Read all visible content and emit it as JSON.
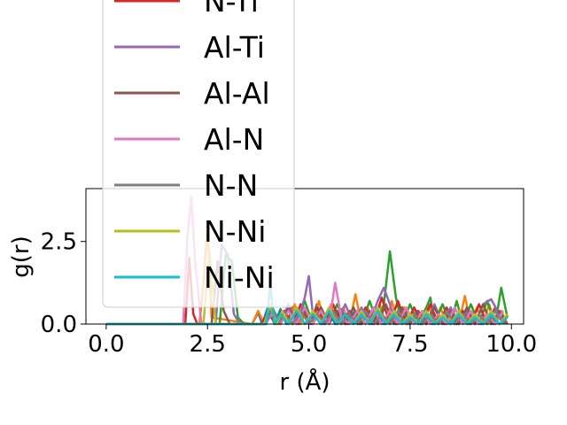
{
  "chart_data": {
    "type": "line",
    "xlabel": "r (Å)",
    "ylabel": "g(r)",
    "xlim": [
      -0.5,
      10.3
    ],
    "ylim": [
      0,
      4.1
    ],
    "x_ticks": [
      "0.0",
      "2.5",
      "5.0",
      "7.5",
      "10.0"
    ],
    "y_ticks": [
      "0.0",
      "2.5"
    ],
    "grid": false,
    "legend_placement": "upper-left (extends above plot)",
    "series": [
      {
        "name": "",
        "color": "#1f77b4",
        "x": [
          0,
          3.6,
          3.75,
          3.85,
          4.0,
          4.15,
          4.3,
          4.45,
          4.6,
          4.75,
          4.9,
          5.05,
          5.2,
          5.35,
          5.5,
          5.65,
          5.8,
          5.95,
          6.1,
          6.25,
          6.4,
          6.55,
          6.7,
          6.85,
          7.0,
          7.15,
          7.3,
          7.45,
          7.6,
          7.75,
          7.9,
          8.05,
          8.2,
          8.35,
          8.5,
          8.65,
          8.8,
          8.95,
          9.1,
          9.25,
          9.4,
          9.55,
          9.7,
          9.85
        ],
        "y": [
          0,
          0,
          0.35,
          0.0,
          0.55,
          0.0,
          0.45,
          0.0,
          0.5,
          0.0,
          0.45,
          0.0,
          0.6,
          0.0,
          0.4,
          0.0,
          0.45,
          0.0,
          0.35,
          0.0,
          0.4,
          0.0,
          0.3,
          0.0,
          0.35,
          0.0,
          0.3,
          0.0,
          0.3,
          0.0,
          0.35,
          0.0,
          0.3,
          0.0,
          0.25,
          0.0,
          0.3,
          0.0,
          0.25,
          0.0,
          0.3,
          0.0,
          0.25,
          0.0
        ]
      },
      {
        "name": "",
        "color": "#ff7f0e",
        "x": [
          0,
          2.3,
          2.4,
          2.5,
          2.6,
          3.6,
          3.75,
          3.9,
          4.05,
          4.2,
          4.35,
          4.5,
          4.65,
          4.8,
          4.95,
          5.1,
          5.25,
          5.4,
          5.55,
          5.7,
          5.85,
          6.0,
          6.15,
          6.3,
          6.45,
          6.6,
          6.75,
          6.9,
          7.05,
          7.2,
          7.35,
          7.5,
          7.65,
          7.8,
          7.95,
          8.1,
          8.25,
          8.4,
          8.55,
          8.7,
          8.85,
          9.0,
          9.15,
          9.3,
          9.45,
          9.6,
          9.75,
          9.9
        ],
        "y": [
          0,
          0,
          1.2,
          3.0,
          0.2,
          0,
          0.4,
          0.0,
          0.5,
          0.0,
          0.4,
          0.0,
          0.6,
          0.0,
          0.5,
          0.0,
          0.7,
          0.0,
          0.6,
          0.0,
          0.5,
          0.0,
          0.9,
          0.0,
          0.5,
          0.0,
          0.6,
          0.0,
          0.7,
          0.0,
          0.5,
          0.0,
          0.4,
          0.0,
          0.6,
          0.0,
          0.5,
          0.0,
          0.4,
          0.0,
          0.85,
          0.0,
          0.5,
          0.0,
          0.6,
          0.0,
          0.4,
          0.0
        ]
      },
      {
        "name": "",
        "color": "#2ca02c",
        "x": [
          0,
          2.8,
          2.95,
          3.1,
          3.25,
          3.4,
          3.9,
          4.1,
          4.3,
          4.5,
          4.7,
          4.9,
          5.1,
          5.3,
          5.5,
          5.7,
          5.9,
          6.1,
          6.3,
          6.5,
          6.7,
          6.85,
          7.0,
          7.15,
          7.3,
          7.5,
          7.7,
          7.9,
          8.0,
          8.1,
          8.3,
          8.5,
          8.65,
          8.8,
          9.0,
          9.2,
          9.4,
          9.6,
          9.75,
          9.9
        ],
        "y": [
          0,
          0,
          2.1,
          1.9,
          0.2,
          0.0,
          0,
          0.5,
          0.0,
          0.6,
          0.0,
          0.7,
          0.0,
          0.5,
          0.0,
          0.6,
          0.0,
          0.5,
          0.0,
          0.7,
          0.0,
          0.6,
          2.2,
          0.8,
          0.0,
          0.6,
          0.0,
          0.5,
          0.8,
          0.0,
          0.6,
          0.0,
          0.7,
          0.0,
          0.6,
          0.0,
          0.7,
          0.0,
          1.1,
          0.2
        ]
      },
      {
        "name": "N-Ti",
        "color": "#d62728",
        "x": [
          0,
          1.95,
          2.05,
          2.15,
          2.25,
          3.8,
          4.0,
          4.2,
          4.4,
          4.6,
          4.8,
          5.0,
          5.2,
          5.4,
          5.6,
          5.8,
          6.0,
          6.2,
          6.4,
          6.6,
          6.8,
          7.0,
          7.2,
          7.4,
          7.6,
          7.8,
          8.0,
          8.2,
          8.4,
          8.6,
          8.8,
          9.0,
          9.2,
          9.4,
          9.6,
          9.8
        ],
        "y": [
          0,
          0,
          2.0,
          0.3,
          0.0,
          0,
          0.3,
          0.0,
          0.4,
          0.0,
          0.6,
          0.0,
          0.5,
          0.0,
          0.6,
          0.0,
          0.4,
          0.0,
          0.5,
          0.0,
          0.8,
          0.0,
          0.7,
          0.0,
          0.5,
          0.0,
          0.6,
          0.0,
          0.5,
          0.0,
          0.4,
          0.0,
          0.6,
          0.0,
          0.5,
          0.0
        ]
      },
      {
        "name": "Al-Ti",
        "color": "#9467bd",
        "x": [
          0,
          2.7,
          2.85,
          3.0,
          3.15,
          3.3,
          3.9,
          4.1,
          4.3,
          4.5,
          4.7,
          4.9,
          5.0,
          5.1,
          5.3,
          5.5,
          5.7,
          5.9,
          6.1,
          6.3,
          6.5,
          6.7,
          6.85,
          7.0,
          7.15,
          7.3,
          7.5,
          7.7,
          7.9,
          8.1,
          8.3,
          8.5,
          8.7,
          8.9,
          9.1,
          9.3,
          9.5,
          9.7,
          9.9
        ],
        "y": [
          0,
          0,
          2.4,
          2.1,
          0.3,
          0.0,
          0,
          0.4,
          0.0,
          0.6,
          0.0,
          0.8,
          1.45,
          0.3,
          0.0,
          0.5,
          0.0,
          0.6,
          0.0,
          0.5,
          0.0,
          0.7,
          1.1,
          0.6,
          0.0,
          0.5,
          0.0,
          0.4,
          0.0,
          0.6,
          0.0,
          0.5,
          0.0,
          0.4,
          0.0,
          0.6,
          0.75,
          0.3,
          0.0
        ]
      },
      {
        "name": "Al-Al",
        "color": "#8c564b",
        "x": [
          0,
          2.6,
          2.75,
          2.9,
          3.05,
          3.9,
          4.1,
          4.3,
          4.5,
          4.7,
          4.9,
          5.1,
          5.3,
          5.5,
          5.7,
          5.9,
          6.1,
          6.3,
          6.5,
          6.7,
          6.9,
          7.1,
          7.3,
          7.5,
          7.7,
          7.9,
          8.1,
          8.3,
          8.5,
          8.7,
          8.9,
          9.1,
          9.3,
          9.5,
          9.7,
          9.9
        ],
        "y": [
          0,
          0,
          1.9,
          0.4,
          0.0,
          0,
          0.3,
          0.0,
          0.5,
          0.0,
          0.4,
          0.0,
          0.5,
          0.0,
          0.4,
          0.0,
          0.5,
          0.0,
          0.4,
          0.0,
          0.6,
          0.0,
          0.5,
          0.0,
          0.4,
          0.0,
          0.5,
          0.0,
          0.4,
          0.0,
          0.5,
          0.0,
          0.6,
          0.0,
          0.4,
          0.0
        ]
      },
      {
        "name": "Al-N",
        "color": "#e377c2",
        "x": [
          0,
          1.9,
          2.0,
          2.1,
          2.2,
          2.35,
          3.9,
          4.1,
          4.3,
          4.5,
          4.7,
          4.9,
          5.1,
          5.3,
          5.5,
          5.65,
          5.8,
          6.0,
          6.2,
          6.4,
          6.6,
          6.8,
          7.0,
          7.2,
          7.4,
          7.6,
          7.8,
          8.0,
          8.2,
          8.4,
          8.6,
          8.8,
          9.0,
          9.2,
          9.4,
          9.6,
          9.8
        ],
        "y": [
          0,
          0,
          2.6,
          3.85,
          1.8,
          0.0,
          0,
          0.3,
          0.0,
          0.4,
          0.0,
          0.5,
          0.0,
          0.4,
          0.0,
          1.25,
          0.2,
          0.0,
          0.4,
          0.0,
          0.5,
          0.0,
          0.4,
          0.0,
          0.5,
          0.0,
          0.4,
          0.0,
          0.3,
          0.0,
          0.5,
          0.0,
          0.4,
          0.0,
          0.3,
          0.0,
          0.4
        ]
      },
      {
        "name": "N-N",
        "color": "#7f7f7f",
        "x": [
          0,
          3.95,
          4.1,
          4.25,
          4.4,
          4.6,
          4.8,
          5.0,
          5.2,
          5.4,
          5.6,
          5.8,
          6.0,
          6.2,
          6.4,
          6.6,
          6.8,
          7.0,
          7.2,
          7.4,
          7.6,
          7.8,
          8.0,
          8.2,
          8.4,
          8.6,
          8.8,
          9.0,
          9.2,
          9.4,
          9.6,
          9.8
        ],
        "y": [
          0,
          0,
          0.5,
          0.0,
          0.3,
          0.0,
          0.4,
          0.0,
          0.3,
          0.0,
          0.4,
          0.0,
          0.3,
          0.0,
          0.4,
          0.0,
          0.3,
          0.0,
          0.4,
          0.0,
          0.3,
          0.0,
          0.3,
          0.0,
          0.4,
          0.0,
          0.3,
          0.0,
          0.3,
          0.0,
          0.4,
          0.0
        ]
      },
      {
        "name": "N-Ni",
        "color": "#bcbd22",
        "x": [
          0,
          2.4,
          2.55,
          2.7,
          3.9,
          4.05,
          4.2,
          4.35,
          4.5,
          4.7,
          4.9,
          5.1,
          5.3,
          5.5,
          5.7,
          5.9,
          6.1,
          6.3,
          6.5,
          6.7,
          6.9,
          7.1,
          7.3,
          7.5,
          7.7,
          7.9,
          8.1,
          8.3,
          8.5,
          8.7,
          8.9,
          9.1,
          9.3,
          9.5,
          9.7,
          9.9
        ],
        "y": [
          0,
          0,
          2.2,
          0.0,
          0,
          0.6,
          0.0,
          0.4,
          0.0,
          0.5,
          0.0,
          0.4,
          0.0,
          0.5,
          0.0,
          0.3,
          0.0,
          0.4,
          0.0,
          0.5,
          0.0,
          0.4,
          0.0,
          0.3,
          0.0,
          0.4,
          0.0,
          0.3,
          0.0,
          0.4,
          0.0,
          0.3,
          0.0,
          0.4,
          0.0,
          0.3
        ]
      },
      {
        "name": "Ni-Ni",
        "color": "#17becf",
        "x": [
          0,
          3.95,
          4.05,
          4.15,
          4.3,
          4.5,
          4.7,
          4.9,
          5.1,
          5.3,
          5.5,
          5.7,
          5.9,
          6.1,
          6.3,
          6.5,
          6.7,
          6.9,
          7.1,
          7.3,
          7.5,
          7.7,
          7.9,
          8.1,
          8.3,
          8.5,
          8.7,
          8.9,
          9.1,
          9.3,
          9.5,
          9.7,
          9.9
        ],
        "y": [
          0,
          0,
          1.2,
          0.0,
          0.3,
          0.0,
          0.4,
          0.0,
          0.3,
          0.0,
          0.4,
          0.0,
          0.3,
          0.0,
          0.3,
          0.0,
          0.4,
          0.0,
          0.3,
          0.0,
          0.2,
          0.0,
          0.3,
          0.0,
          0.2,
          0.0,
          0.3,
          0.0,
          0.2,
          0.0,
          0.3,
          0.0,
          0.2
        ]
      }
    ]
  }
}
